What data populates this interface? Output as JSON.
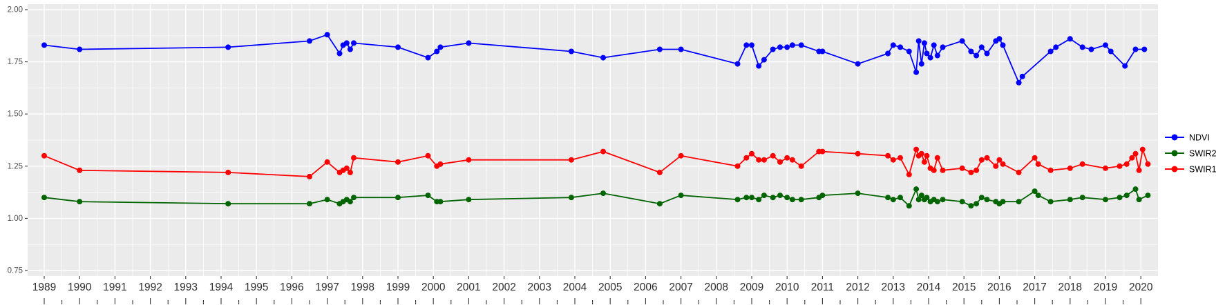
{
  "chart_data": {
    "type": "line",
    "title": "",
    "xlabel": "",
    "ylabel": "",
    "grid": true,
    "legend_position": "right",
    "panel_bg": "#EBEBEB",
    "grid_color": "#FFFFFF",
    "axis_text_color": "#303030",
    "y_axis_text_color": "#4D4D4D",
    "xlim": [
      1988.5,
      2020.5
    ],
    "ylim": [
      0.75,
      2.0
    ],
    "x_ticks": [
      1989,
      1990,
      1991,
      1992,
      1993,
      1994,
      1995,
      1996,
      1997,
      1998,
      1999,
      2000,
      2001,
      2002,
      2003,
      2004,
      2005,
      2006,
      2007,
      2008,
      2009,
      2010,
      2011,
      2012,
      2013,
      2014,
      2015,
      2016,
      2017,
      2018,
      2019,
      2020
    ],
    "y_tick_values": [
      2.0,
      1.75,
      1.5,
      1.25,
      1.0,
      0.75
    ],
    "y_tick_labels": [
      "2.00",
      "1.75",
      "1.50",
      "1.25",
      "1.00",
      "0.75"
    ],
    "series": [
      {
        "name": "NDVI",
        "color": "#0000FF",
        "points": [
          [
            1989.0,
            1.83
          ],
          [
            1990.0,
            1.81
          ],
          [
            1994.2,
            1.82
          ],
          [
            1996.5,
            1.85
          ],
          [
            1997.0,
            1.88
          ],
          [
            1997.35,
            1.79
          ],
          [
            1997.45,
            1.83
          ],
          [
            1997.55,
            1.84
          ],
          [
            1997.65,
            1.81
          ],
          [
            1997.75,
            1.84
          ],
          [
            1999.0,
            1.82
          ],
          [
            1999.85,
            1.77
          ],
          [
            2000.1,
            1.8
          ],
          [
            2000.2,
            1.82
          ],
          [
            2001.0,
            1.84
          ],
          [
            2003.9,
            1.8
          ],
          [
            2004.8,
            1.77
          ],
          [
            2006.4,
            1.81
          ],
          [
            2007.0,
            1.81
          ],
          [
            2008.6,
            1.74
          ],
          [
            2008.85,
            1.83
          ],
          [
            2009.0,
            1.83
          ],
          [
            2009.2,
            1.73
          ],
          [
            2009.35,
            1.76
          ],
          [
            2009.6,
            1.81
          ],
          [
            2009.8,
            1.82
          ],
          [
            2010.0,
            1.82
          ],
          [
            2010.15,
            1.83
          ],
          [
            2010.4,
            1.83
          ],
          [
            2010.9,
            1.8
          ],
          [
            2011.0,
            1.8
          ],
          [
            2012.0,
            1.74
          ],
          [
            2012.85,
            1.79
          ],
          [
            2013.0,
            1.83
          ],
          [
            2013.2,
            1.82
          ],
          [
            2013.45,
            1.8
          ],
          [
            2013.65,
            1.7
          ],
          [
            2013.72,
            1.85
          ],
          [
            2013.8,
            1.74
          ],
          [
            2013.88,
            1.84
          ],
          [
            2013.95,
            1.79
          ],
          [
            2014.05,
            1.77
          ],
          [
            2014.15,
            1.83
          ],
          [
            2014.25,
            1.78
          ],
          [
            2014.4,
            1.82
          ],
          [
            2014.95,
            1.85
          ],
          [
            2015.2,
            1.8
          ],
          [
            2015.35,
            1.78
          ],
          [
            2015.5,
            1.82
          ],
          [
            2015.65,
            1.79
          ],
          [
            2015.9,
            1.85
          ],
          [
            2016.0,
            1.86
          ],
          [
            2016.1,
            1.83
          ],
          [
            2016.55,
            1.65
          ],
          [
            2016.65,
            1.68
          ],
          [
            2017.45,
            1.8
          ],
          [
            2017.6,
            1.82
          ],
          [
            2018.0,
            1.86
          ],
          [
            2018.35,
            1.82
          ],
          [
            2018.6,
            1.81
          ],
          [
            2019.0,
            1.83
          ],
          [
            2019.15,
            1.8
          ],
          [
            2019.55,
            1.73
          ],
          [
            2019.85,
            1.81
          ],
          [
            2020.1,
            1.81
          ]
        ]
      },
      {
        "name": "SWIR2",
        "color": "#006400",
        "points": [
          [
            1989.0,
            1.1
          ],
          [
            1990.0,
            1.08
          ],
          [
            1994.2,
            1.07
          ],
          [
            1996.5,
            1.07
          ],
          [
            1997.0,
            1.09
          ],
          [
            1997.35,
            1.07
          ],
          [
            1997.45,
            1.08
          ],
          [
            1997.55,
            1.09
          ],
          [
            1997.65,
            1.08
          ],
          [
            1997.75,
            1.1
          ],
          [
            1999.0,
            1.1
          ],
          [
            1999.85,
            1.11
          ],
          [
            2000.1,
            1.08
          ],
          [
            2000.2,
            1.08
          ],
          [
            2001.0,
            1.09
          ],
          [
            2003.9,
            1.1
          ],
          [
            2004.8,
            1.12
          ],
          [
            2006.4,
            1.07
          ],
          [
            2007.0,
            1.11
          ],
          [
            2008.6,
            1.09
          ],
          [
            2008.85,
            1.1
          ],
          [
            2009.0,
            1.1
          ],
          [
            2009.2,
            1.09
          ],
          [
            2009.35,
            1.11
          ],
          [
            2009.6,
            1.1
          ],
          [
            2009.8,
            1.11
          ],
          [
            2010.0,
            1.1
          ],
          [
            2010.15,
            1.09
          ],
          [
            2010.4,
            1.09
          ],
          [
            2010.9,
            1.1
          ],
          [
            2011.0,
            1.11
          ],
          [
            2012.0,
            1.12
          ],
          [
            2012.85,
            1.1
          ],
          [
            2013.0,
            1.09
          ],
          [
            2013.2,
            1.1
          ],
          [
            2013.45,
            1.06
          ],
          [
            2013.65,
            1.14
          ],
          [
            2013.72,
            1.09
          ],
          [
            2013.8,
            1.11
          ],
          [
            2013.88,
            1.09
          ],
          [
            2013.95,
            1.1
          ],
          [
            2014.05,
            1.08
          ],
          [
            2014.15,
            1.09
          ],
          [
            2014.25,
            1.08
          ],
          [
            2014.4,
            1.09
          ],
          [
            2014.95,
            1.08
          ],
          [
            2015.2,
            1.06
          ],
          [
            2015.35,
            1.07
          ],
          [
            2015.5,
            1.1
          ],
          [
            2015.65,
            1.09
          ],
          [
            2015.9,
            1.08
          ],
          [
            2016.0,
            1.07
          ],
          [
            2016.1,
            1.08
          ],
          [
            2016.55,
            1.08
          ],
          [
            2017.0,
            1.13
          ],
          [
            2017.1,
            1.11
          ],
          [
            2017.45,
            1.08
          ],
          [
            2018.0,
            1.09
          ],
          [
            2018.35,
            1.1
          ],
          [
            2019.0,
            1.09
          ],
          [
            2019.4,
            1.1
          ],
          [
            2019.6,
            1.11
          ],
          [
            2019.85,
            1.14
          ],
          [
            2019.95,
            1.09
          ],
          [
            2020.2,
            1.11
          ]
        ]
      },
      {
        "name": "SWIR1",
        "color": "#FF0000",
        "points": [
          [
            1989.0,
            1.3
          ],
          [
            1990.0,
            1.23
          ],
          [
            1994.2,
            1.22
          ],
          [
            1996.5,
            1.2
          ],
          [
            1997.0,
            1.27
          ],
          [
            1997.35,
            1.22
          ],
          [
            1997.45,
            1.23
          ],
          [
            1997.55,
            1.24
          ],
          [
            1997.65,
            1.22
          ],
          [
            1997.75,
            1.29
          ],
          [
            1999.0,
            1.27
          ],
          [
            1999.85,
            1.3
          ],
          [
            2000.1,
            1.25
          ],
          [
            2000.2,
            1.26
          ],
          [
            2001.0,
            1.28
          ],
          [
            2003.9,
            1.28
          ],
          [
            2004.8,
            1.32
          ],
          [
            2006.4,
            1.22
          ],
          [
            2007.0,
            1.3
          ],
          [
            2008.6,
            1.25
          ],
          [
            2008.85,
            1.29
          ],
          [
            2009.0,
            1.31
          ],
          [
            2009.2,
            1.28
          ],
          [
            2009.35,
            1.28
          ],
          [
            2009.6,
            1.3
          ],
          [
            2009.8,
            1.27
          ],
          [
            2010.0,
            1.29
          ],
          [
            2010.15,
            1.28
          ],
          [
            2010.4,
            1.25
          ],
          [
            2010.9,
            1.32
          ],
          [
            2011.0,
            1.32
          ],
          [
            2012.0,
            1.31
          ],
          [
            2012.85,
            1.3
          ],
          [
            2013.0,
            1.28
          ],
          [
            2013.2,
            1.29
          ],
          [
            2013.45,
            1.21
          ],
          [
            2013.65,
            1.33
          ],
          [
            2013.72,
            1.3
          ],
          [
            2013.8,
            1.31
          ],
          [
            2013.88,
            1.27
          ],
          [
            2013.95,
            1.3
          ],
          [
            2014.05,
            1.24
          ],
          [
            2014.15,
            1.23
          ],
          [
            2014.25,
            1.29
          ],
          [
            2014.4,
            1.23
          ],
          [
            2014.95,
            1.24
          ],
          [
            2015.2,
            1.22
          ],
          [
            2015.35,
            1.23
          ],
          [
            2015.5,
            1.28
          ],
          [
            2015.65,
            1.29
          ],
          [
            2015.9,
            1.25
          ],
          [
            2016.0,
            1.28
          ],
          [
            2016.1,
            1.26
          ],
          [
            2016.55,
            1.22
          ],
          [
            2017.0,
            1.29
          ],
          [
            2017.1,
            1.26
          ],
          [
            2017.45,
            1.23
          ],
          [
            2018.0,
            1.24
          ],
          [
            2018.35,
            1.26
          ],
          [
            2019.0,
            1.24
          ],
          [
            2019.4,
            1.25
          ],
          [
            2019.6,
            1.26
          ],
          [
            2019.75,
            1.29
          ],
          [
            2019.85,
            1.31
          ],
          [
            2019.95,
            1.23
          ],
          [
            2020.05,
            1.33
          ],
          [
            2020.2,
            1.26
          ]
        ]
      }
    ],
    "legend_entries": [
      "NDVI",
      "SWIR2",
      "SWIR1"
    ]
  }
}
